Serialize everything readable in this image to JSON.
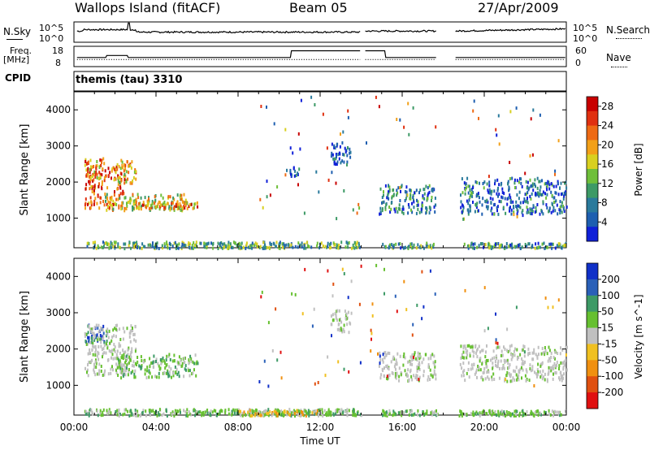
{
  "header": {
    "title": "Wallops Island (fitACF)",
    "beam": "Beam 05",
    "date": "27/Apr/2009"
  },
  "strips": {
    "nsky_label": "N.Sky",
    "nsearch_label": "N.Search",
    "nsky_ticks": [
      "10^5",
      "10^0"
    ],
    "nsearch_ticks": [
      "10^5",
      "10^0"
    ],
    "freq_label": "Freq.",
    "freq_unit": "[MHz]",
    "freq_ticks": [
      "18",
      "8"
    ],
    "nave_label": "Nave",
    "nave_ticks": [
      "60",
      "0"
    ],
    "cpid_label": "CPID",
    "cpid_value": "themis (tau) 3310"
  },
  "xaxis": {
    "label": "Time UT",
    "ticks": [
      "00:00",
      "04:00",
      "08:00",
      "12:00",
      "16:00",
      "20:00",
      "00:00"
    ],
    "range_hours": [
      0,
      24
    ]
  },
  "chart_data": [
    {
      "type": "heatmap",
      "title": "",
      "ylabel": "Slant Range [km]",
      "yticks": [
        1000,
        2000,
        3000,
        4000
      ],
      "ylim": [
        180,
        4500
      ],
      "colorbar": {
        "label": "Power [dB]",
        "ticks": [
          4,
          8,
          12,
          16,
          20,
          24,
          28
        ],
        "range": [
          0,
          30
        ],
        "colors": [
          "#1020d8",
          "#1e5fb0",
          "#2a7a9c",
          "#3d9a66",
          "#6fbf3a",
          "#d8d020",
          "#f2a018",
          "#ee6a14",
          "#e03010",
          "#c80000"
        ]
      },
      "regions": [
        {
          "t0": 0.5,
          "t1": 2.5,
          "r0": 1300,
          "r1": 2500,
          "level": 0.8
        },
        {
          "t0": 0.5,
          "t1": 1.5,
          "r0": 2100,
          "r1": 2700,
          "level": 0.7
        },
        {
          "t0": 2.0,
          "t1": 3.0,
          "r0": 2000,
          "r1": 2650,
          "level": 0.6
        },
        {
          "t0": 1.5,
          "t1": 5.5,
          "r0": 1250,
          "r1": 1700,
          "level": 0.55
        },
        {
          "t0": 3.0,
          "t1": 6.0,
          "r0": 1300,
          "r1": 1500,
          "level": 0.7
        },
        {
          "t0": 0.5,
          "t1": 14.0,
          "r0": 200,
          "r1": 380,
          "level": 0.35
        },
        {
          "t0": 12.5,
          "t1": 13.5,
          "r0": 2500,
          "r1": 3100,
          "level": 0.15
        },
        {
          "t0": 10.5,
          "t1": 11.0,
          "r0": 2200,
          "r1": 2450,
          "level": 0.15
        },
        {
          "t0": 14.8,
          "t1": 17.6,
          "r0": 1150,
          "r1": 1950,
          "level": 0.25
        },
        {
          "t0": 18.8,
          "t1": 24.0,
          "r0": 1150,
          "r1": 2150,
          "level": 0.2
        },
        {
          "t0": 15.0,
          "t1": 17.5,
          "r0": 200,
          "r1": 350,
          "level": 0.3
        },
        {
          "t0": 19.0,
          "t1": 24.0,
          "r0": 200,
          "r1": 350,
          "level": 0.3
        }
      ]
    },
    {
      "type": "heatmap",
      "title": "",
      "ylabel": "Slant Range [km]",
      "yticks": [
        1000,
        2000,
        3000,
        4000
      ],
      "ylim": [
        180,
        4500
      ],
      "colorbar": {
        "label": "Velocity [m s^-1]",
        "ticks": [
          "200",
          "100",
          "50",
          "15",
          "-15",
          "-50",
          "-100",
          "-200"
        ],
        "colors": [
          "#1030c8",
          "#2a60b8",
          "#3d9a66",
          "#66c030",
          "#c0c0c0",
          "#f0c020",
          "#f09010",
          "#e05010",
          "#e01010"
        ]
      },
      "regions": [
        {
          "t0": 0.5,
          "t1": 1.6,
          "r0": 2200,
          "r1": 2700,
          "class": "pos-high"
        },
        {
          "t0": 0.5,
          "t1": 3.0,
          "r0": 1300,
          "r1": 2700,
          "class": "zero"
        },
        {
          "t0": 2.0,
          "t1": 6.0,
          "r0": 1250,
          "r1": 1900,
          "class": "pos-low"
        },
        {
          "t0": 0.5,
          "t1": 14.0,
          "r0": 200,
          "r1": 380,
          "class": "pos-low"
        },
        {
          "t0": 8.0,
          "t1": 12.0,
          "r0": 200,
          "r1": 350,
          "class": "neg-low"
        },
        {
          "t0": 12.5,
          "t1": 13.5,
          "r0": 2500,
          "r1": 3100,
          "class": "zero"
        },
        {
          "t0": 14.8,
          "t1": 17.6,
          "r0": 1150,
          "r1": 1950,
          "class": "zero"
        },
        {
          "t0": 18.8,
          "t1": 24.0,
          "r0": 1150,
          "r1": 2150,
          "class": "zero"
        },
        {
          "t0": 15.0,
          "t1": 24.0,
          "r0": 200,
          "r1": 350,
          "class": "pos-low"
        }
      ]
    }
  ]
}
